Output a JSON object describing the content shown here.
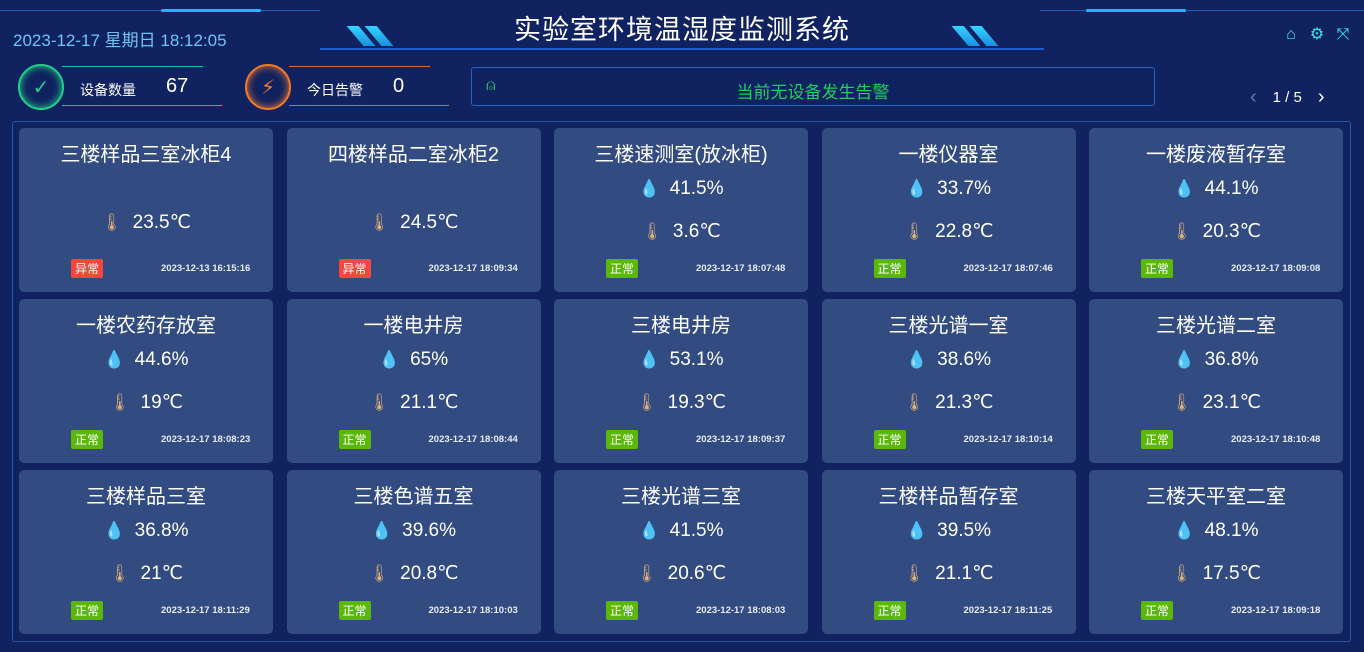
{
  "header": {
    "title": "实验室环境温湿度监测系统",
    "datetime": "2023-12-17 星期日 18:12:05",
    "icons": [
      "home-icon",
      "gear-icon",
      "fullscreen-icon"
    ]
  },
  "stats": {
    "devices": {
      "label": "设备数量",
      "value": "67",
      "color": "#20d08a"
    },
    "alarms": {
      "label": "今日告警",
      "value": "0",
      "color": "#f07a2a"
    }
  },
  "alert": {
    "text": "当前无设备发生告警",
    "color": "#1fcf5f"
  },
  "pager": {
    "text": "1 / 5"
  },
  "colors": {
    "normal": "#5bb80a",
    "abnormal": "#f0473f",
    "card": "#324b80",
    "bg": "#10225f"
  },
  "cards": [
    {
      "name": "三楼样品三室冰柜4",
      "humidity": null,
      "temp": "23.5℃",
      "status": "异常",
      "abnormal": true,
      "time": "2023-12-13 16:15:16"
    },
    {
      "name": "四楼样品二室冰柜2",
      "humidity": null,
      "temp": "24.5℃",
      "status": "异常",
      "abnormal": true,
      "time": "2023-12-17 18:09:34"
    },
    {
      "name": "三楼速测室(放冰柜)",
      "humidity": "41.5%",
      "temp": "3.6℃",
      "status": "正常",
      "abnormal": false,
      "time": "2023-12-17 18:07:48"
    },
    {
      "name": "一楼仪器室",
      "humidity": "33.7%",
      "temp": "22.8℃",
      "status": "正常",
      "abnormal": false,
      "time": "2023-12-17 18:07:46"
    },
    {
      "name": "一楼废液暂存室",
      "humidity": "44.1%",
      "temp": "20.3℃",
      "status": "正常",
      "abnormal": false,
      "time": "2023-12-17 18:09:08"
    },
    {
      "name": "一楼农药存放室",
      "humidity": "44.6%",
      "temp": "19℃",
      "status": "正常",
      "abnormal": false,
      "time": "2023-12-17 18:08:23"
    },
    {
      "name": "一楼电井房",
      "humidity": "65%",
      "temp": "21.1℃",
      "status": "正常",
      "abnormal": false,
      "time": "2023-12-17 18:08:44"
    },
    {
      "name": "三楼电井房",
      "humidity": "53.1%",
      "temp": "19.3℃",
      "status": "正常",
      "abnormal": false,
      "time": "2023-12-17 18:09:37"
    },
    {
      "name": "三楼光谱一室",
      "humidity": "38.6%",
      "temp": "21.3℃",
      "status": "正常",
      "abnormal": false,
      "time": "2023-12-17 18:10:14"
    },
    {
      "name": "三楼光谱二室",
      "humidity": "36.8%",
      "temp": "23.1℃",
      "status": "正常",
      "abnormal": false,
      "time": "2023-12-17 18:10:48"
    },
    {
      "name": "三楼样品三室",
      "humidity": "36.8%",
      "temp": "21℃",
      "status": "正常",
      "abnormal": false,
      "time": "2023-12-17 18:11:29"
    },
    {
      "name": "三楼色谱五室",
      "humidity": "39.6%",
      "temp": "20.8℃",
      "status": "正常",
      "abnormal": false,
      "time": "2023-12-17 18:10:03"
    },
    {
      "name": "三楼光谱三室",
      "humidity": "41.5%",
      "temp": "20.6℃",
      "status": "正常",
      "abnormal": false,
      "time": "2023-12-17 18:08:03"
    },
    {
      "name": "三楼样品暂存室",
      "humidity": "39.5%",
      "temp": "21.1℃",
      "status": "正常",
      "abnormal": false,
      "time": "2023-12-17 18:11:25"
    },
    {
      "name": "三楼天平室二室",
      "humidity": "48.1%",
      "temp": "17.5℃",
      "status": "正常",
      "abnormal": false,
      "time": "2023-12-17 18:09:18"
    }
  ]
}
